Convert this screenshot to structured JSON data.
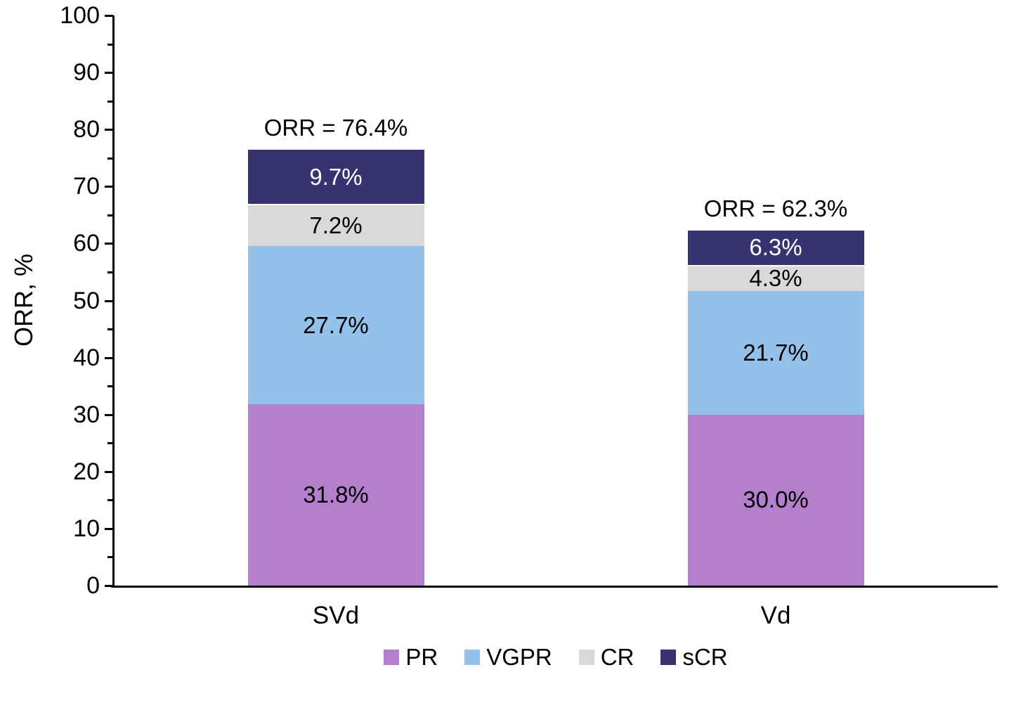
{
  "chart_data": {
    "type": "bar",
    "stacked": true,
    "title": "",
    "ylabel": "ORR, %",
    "xlabel": "",
    "ylim": [
      0,
      100
    ],
    "yticks": [
      0,
      10,
      20,
      30,
      40,
      50,
      60,
      70,
      80,
      90,
      100
    ],
    "ytick_minor_step": 5,
    "grid": false,
    "legend_position": "bottom-center",
    "categories": [
      "SVd",
      "Vd"
    ],
    "series": [
      {
        "name": "PR",
        "color": "#b480ce",
        "label_color": "#000000",
        "values": [
          31.8,
          30.0
        ],
        "labels": [
          "31.8%",
          "30.0%"
        ]
      },
      {
        "name": "VGPR",
        "color": "#94c1ea",
        "label_color": "#000000",
        "values": [
          27.7,
          21.7
        ],
        "labels": [
          "27.7%",
          "21.7%"
        ]
      },
      {
        "name": "CR",
        "color": "#d9d9d9",
        "label_color": "#000000",
        "values": [
          7.2,
          4.3
        ],
        "labels": [
          "7.2%",
          "4.3%"
        ]
      },
      {
        "name": "sCR",
        "color": "#363370",
        "label_color": "#ffffff",
        "values": [
          9.7,
          6.3
        ],
        "labels": [
          "9.7%",
          "6.3%"
        ]
      }
    ],
    "totals": [
      {
        "value": 76.4,
        "label": "ORR = 76.4%"
      },
      {
        "value": 62.3,
        "label": "ORR = 62.3%"
      }
    ]
  },
  "colors": {
    "axis": "#000000",
    "background": "#ffffff",
    "segment_divider": "#ffffff"
  }
}
